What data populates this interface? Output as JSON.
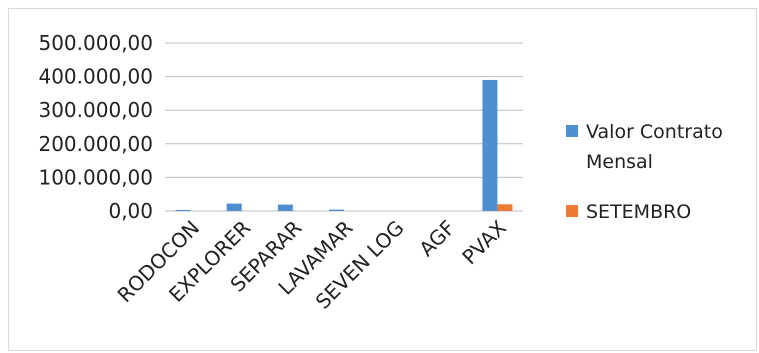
{
  "chart_data": {
    "type": "bar",
    "categories": [
      "RODOCON",
      "EXPLORER",
      "SEPARAR",
      "LAVAMAR",
      "SEVEN LOG",
      "AGF",
      "PVAX"
    ],
    "series": [
      {
        "name": "Valor Contrato Mensal",
        "values": [
          3000,
          22000,
          19000,
          4000,
          0,
          0,
          390000
        ],
        "color": "#4f8fd0"
      },
      {
        "name": "SETEMBRO",
        "values": [
          0,
          0,
          0,
          0,
          0,
          0,
          20000
        ],
        "color": "#ee7b35"
      }
    ],
    "y_ticks": [
      "0,00",
      "100.000,00",
      "200.000,00",
      "300.000,00",
      "400.000,00",
      "500.000,00"
    ],
    "ylim": [
      0,
      500000
    ],
    "grid": true,
    "legend_position": "right",
    "legend_lines": [
      [
        "Valor Contrato",
        "Mensal"
      ],
      [
        "SETEMBRO"
      ]
    ]
  }
}
